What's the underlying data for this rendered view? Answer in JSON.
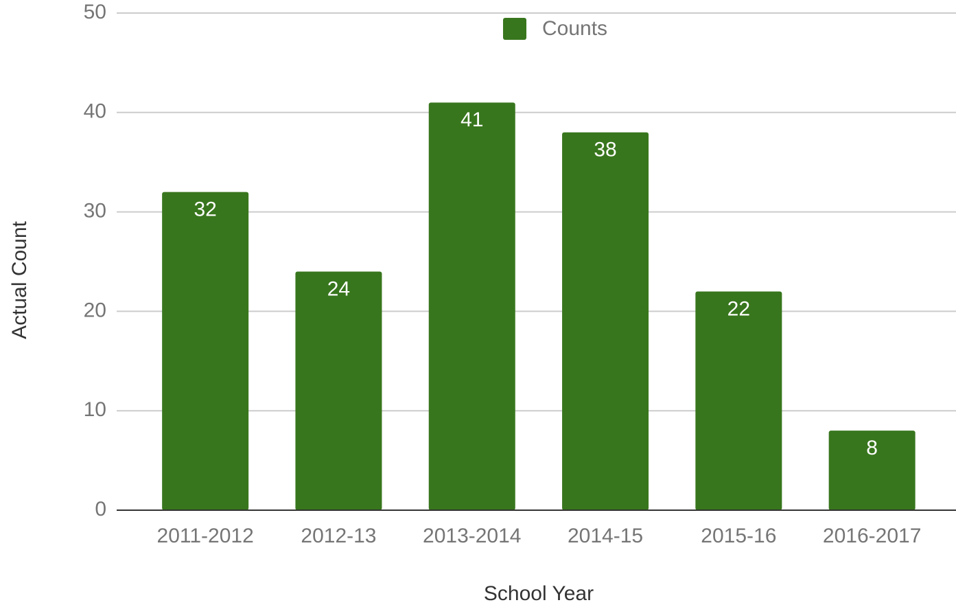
{
  "chart_data": {
    "type": "bar",
    "x_label": "School Year",
    "y_label": "Actual Count",
    "categories": [
      "2011-2012",
      "2012-13",
      "2013-2014",
      "2014-15",
      "2015-16",
      "2016-2017"
    ],
    "series": [
      {
        "name": "Counts",
        "color": "#38761d",
        "values": [
          32,
          24,
          41,
          38,
          22,
          8
        ]
      }
    ],
    "ylim": [
      0,
      50
    ],
    "yticks": [
      0,
      10,
      20,
      30,
      40,
      50
    ],
    "grid": true,
    "legend": "top"
  }
}
